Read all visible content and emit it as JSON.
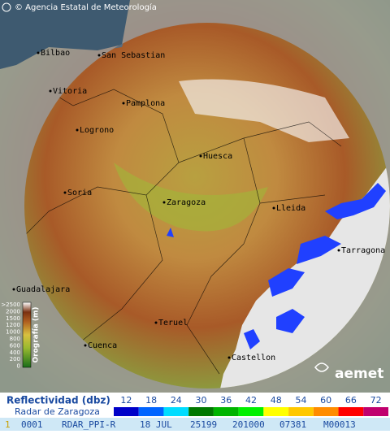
{
  "header": {
    "credit": "© Agencia Estatal de Meteorología"
  },
  "map": {
    "cities": [
      {
        "label": "Bilbao"
      },
      {
        "label": "San Sebastian"
      },
      {
        "label": "Vitoria"
      },
      {
        "label": "Pamplona"
      },
      {
        "label": "Logrono"
      },
      {
        "label": "Huesca"
      },
      {
        "label": "Soria"
      },
      {
        "label": "Zaragoza"
      },
      {
        "label": "Lleida"
      },
      {
        "label": "Tarragona"
      },
      {
        "label": "Guadalajara"
      },
      {
        "label": "Teruel"
      },
      {
        "label": "Cuenca"
      },
      {
        "label": "Castellon"
      }
    ]
  },
  "elevation_legend": {
    "title": "Orografía (m)",
    "levels": [
      ">2500",
      2000,
      1500,
      1200,
      1000,
      800,
      600,
      400,
      200,
      0
    ]
  },
  "logo": "aemet",
  "reflectivity_legend": {
    "title": "Reflectividad (dbz)",
    "subtitle": "Radar de Zaragoza",
    "levels": [
      {
        "value": 12,
        "color": "#0000c8"
      },
      {
        "value": 18,
        "color": "#0064ff"
      },
      {
        "value": 24,
        "color": "#00dcff"
      },
      {
        "value": 30,
        "color": "#007800"
      },
      {
        "value": 36,
        "color": "#00b400"
      },
      {
        "value": 42,
        "color": "#00f000"
      },
      {
        "value": 48,
        "color": "#ffff00"
      },
      {
        "value": 54,
        "color": "#ffc800"
      },
      {
        "value": 60,
        "color": "#ff8c00"
      },
      {
        "value": 66,
        "color": "#ff0000"
      },
      {
        "value": 72,
        "color": "#c0006e"
      }
    ]
  },
  "status_bar": {
    "fields": [
      "1",
      "0001",
      "RDAR_PPI-R",
      "18 JUL",
      "25199",
      "201000",
      "07381",
      "M00013"
    ]
  }
}
